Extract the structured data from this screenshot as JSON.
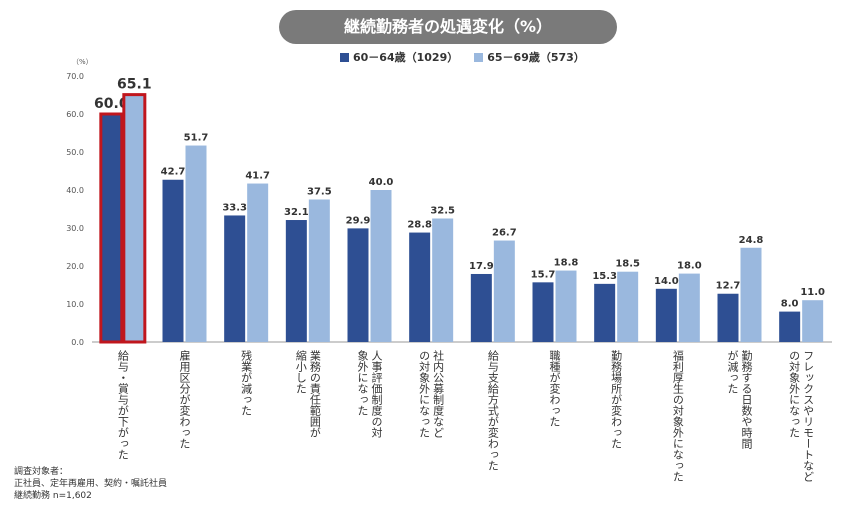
{
  "chart_data": {
    "type": "bar",
    "title": "継続勤務者の処遇変化（%）",
    "ylabel": "（%）",
    "ylim": [
      0,
      70
    ],
    "yticks": [
      "0.0",
      "10.0",
      "20.0",
      "30.0",
      "40.0",
      "50.0",
      "60.0",
      "70.0"
    ],
    "categories": [
      "給与・賞与が下がった",
      "雇用区分が変わった",
      "残業が減った",
      "業務の責任範囲が縮小した",
      "人事評価制度の対象外になった",
      "社内公募制度などの対象外になった",
      "給与支給方式が変わった",
      "職種が変わった",
      "勤務場所が変わった",
      "福利厚生の対象外になった",
      "勤務する日数や時間が減った",
      "フレックスやリモートなどの対象外になった"
    ],
    "category_lines": [
      [
        "給与・賞与が下がった"
      ],
      [
        "雇用区分が変わった"
      ],
      [
        "残業が減った"
      ],
      [
        "業務の責任範囲が",
        "縮小した"
      ],
      [
        "人事評価制度の対",
        "象外になった"
      ],
      [
        "社内公募制度など",
        "の対象外になった"
      ],
      [
        "給与支給方式が変わった"
      ],
      [
        "職種が変わった"
      ],
      [
        "勤務場所が変わった"
      ],
      [
        "福利厚生の対象外になった"
      ],
      [
        "勤務する日数や時間",
        "が減った"
      ],
      [
        "フレックスやリモートなど",
        "の対象外になった"
      ]
    ],
    "series": [
      {
        "name": "60－64歳（1029）",
        "color": "#2e4f93",
        "values": [
          60.0,
          42.7,
          33.3,
          32.1,
          29.9,
          28.8,
          17.9,
          15.7,
          15.3,
          14.0,
          12.7,
          8.0
        ],
        "labels": [
          "60.0",
          "42.7",
          "33.3",
          "32.1",
          "29.9",
          "28.8",
          "17.9",
          "15.7",
          "15.3",
          "14.0",
          "12.7",
          "8.0"
        ]
      },
      {
        "name": "65－69歳（573）",
        "color": "#9ab8de",
        "values": [
          65.1,
          51.7,
          41.7,
          37.5,
          40.0,
          32.5,
          26.7,
          18.8,
          18.5,
          18.0,
          24.8,
          11.0
        ],
        "labels": [
          "65.1",
          "51.7",
          "41.7",
          "37.5",
          "40.0",
          "32.5",
          "26.7",
          "18.8",
          "18.5",
          "18.0",
          "24.8",
          "11.0"
        ]
      }
    ],
    "highlight_category": 0,
    "highlight_color": "#c0161d"
  },
  "note": {
    "line1": "調査対象者：",
    "line2": "正社員、定年再雇用、契約・嘱託社員",
    "line3": "継続勤務 n=1,602"
  }
}
